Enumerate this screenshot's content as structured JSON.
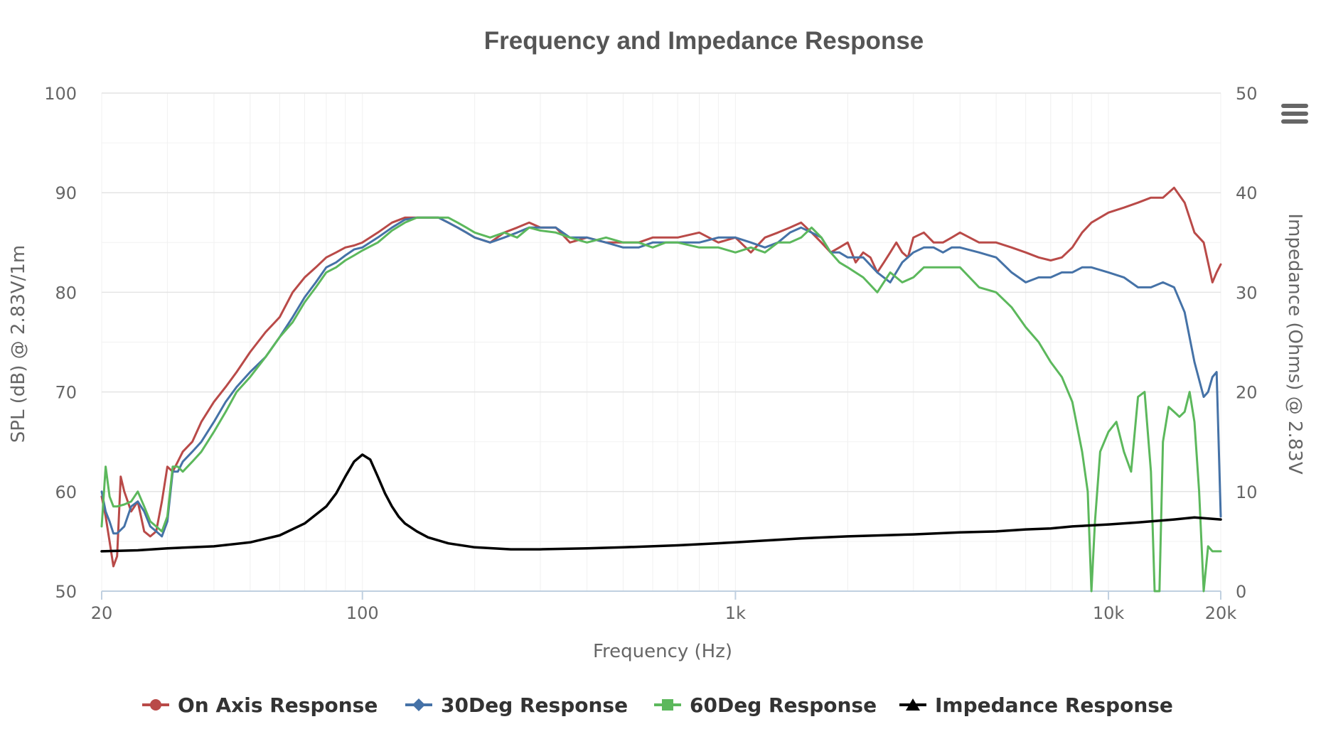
{
  "chart_data": {
    "type": "line",
    "title": "Frequency and Impedance Response",
    "xlabel": "Frequency (Hz)",
    "ylabel": "SPL (dB) @ 2.83V/1m",
    "y2label": "Impedance (Ohms) @ 2.83V",
    "xscale": "log",
    "xlim": [
      20,
      20000
    ],
    "ylim": [
      50,
      100
    ],
    "y2lim": [
      0,
      50
    ],
    "x_ticks": [
      {
        "value": 20,
        "label": "20"
      },
      {
        "value": 100,
        "label": "100"
      },
      {
        "value": 1000,
        "label": "1k"
      },
      {
        "value": 10000,
        "label": "10k"
      },
      {
        "value": 20000,
        "label": "20k"
      }
    ],
    "y_ticks": [
      {
        "value": 50,
        "label": "50"
      },
      {
        "value": 60,
        "label": "60"
      },
      {
        "value": 70,
        "label": "70"
      },
      {
        "value": 80,
        "label": "80"
      },
      {
        "value": 90,
        "label": "90"
      },
      {
        "value": 100,
        "label": "100"
      }
    ],
    "y2_ticks": [
      {
        "value": 0,
        "label": "0"
      },
      {
        "value": 10,
        "label": "10"
      },
      {
        "value": 20,
        "label": "20"
      },
      {
        "value": 30,
        "label": "30"
      },
      {
        "value": 40,
        "label": "40"
      },
      {
        "value": 50,
        "label": "50"
      }
    ],
    "grid": true,
    "legend_position": "bottom-center",
    "series": [
      {
        "name": "On Axis Response",
        "color": "#b94a48",
        "axis": "left",
        "marker": "circle",
        "x": [
          20,
          20.5,
          21,
          21.5,
          22,
          22.5,
          23,
          24,
          25,
          26,
          27,
          28,
          29,
          30,
          31,
          32,
          33,
          35,
          37,
          40,
          43,
          46,
          50,
          55,
          60,
          65,
          70,
          75,
          80,
          85,
          90,
          95,
          100,
          110,
          120,
          130,
          140,
          150,
          160,
          170,
          180,
          190,
          200,
          220,
          240,
          260,
          280,
          300,
          330,
          360,
          400,
          450,
          500,
          550,
          600,
          650,
          700,
          800,
          900,
          1000,
          1100,
          1200,
          1300,
          1400,
          1500,
          1600,
          1700,
          1800,
          1900,
          2000,
          2100,
          2200,
          2300,
          2400,
          2500,
          2600,
          2700,
          2800,
          2900,
          3000,
          3200,
          3400,
          3600,
          3800,
          4000,
          4500,
          5000,
          5500,
          6000,
          6500,
          7000,
          7500,
          8000,
          8500,
          9000,
          10000,
          11000,
          12000,
          13000,
          14000,
          15000,
          16000,
          17000,
          18000,
          19000,
          19500,
          20000
        ],
        "values": [
          59.5,
          57.5,
          55.0,
          52.5,
          53.5,
          61.5,
          60.0,
          58.0,
          59.0,
          56.0,
          55.5,
          56.0,
          59.0,
          62.5,
          62.0,
          63.0,
          64.0,
          65.0,
          67.0,
          69.0,
          70.5,
          72.0,
          74.0,
          76.0,
          77.5,
          80.0,
          81.5,
          82.5,
          83.5,
          84.0,
          84.5,
          84.7,
          85.0,
          86.0,
          87.0,
          87.5,
          87.5,
          87.5,
          87.5,
          87.0,
          86.5,
          86.0,
          85.5,
          85.0,
          86.0,
          86.5,
          87.0,
          86.5,
          86.5,
          85.0,
          85.5,
          85.0,
          85.0,
          85.0,
          85.5,
          85.5,
          85.5,
          86.0,
          85.0,
          85.5,
          84.0,
          85.5,
          86.0,
          86.5,
          87.0,
          86.0,
          85.0,
          84.0,
          84.5,
          85.0,
          83.0,
          84.0,
          83.5,
          82.0,
          83.0,
          84.0,
          85.0,
          84.0,
          83.5,
          85.5,
          86.0,
          85.0,
          85.0,
          85.5,
          86.0,
          85.0,
          85.0,
          84.5,
          84.0,
          83.5,
          83.2,
          83.5,
          84.5,
          86.0,
          87.0,
          88.0,
          88.5,
          89.0,
          89.5,
          89.5,
          90.5,
          89.0,
          86.0,
          85.0,
          81.0,
          82.0,
          82.8
        ]
      },
      {
        "name": "30Deg Response",
        "color": "#4572a7",
        "axis": "left",
        "marker": "diamond",
        "x": [
          20,
          20.5,
          21,
          21.5,
          22,
          23,
          24,
          25,
          26,
          27,
          28,
          29,
          30,
          31,
          32,
          33,
          35,
          37,
          40,
          43,
          46,
          50,
          55,
          60,
          65,
          70,
          75,
          80,
          85,
          90,
          95,
          100,
          110,
          120,
          130,
          140,
          150,
          160,
          170,
          180,
          190,
          200,
          220,
          240,
          260,
          280,
          300,
          330,
          360,
          400,
          450,
          500,
          550,
          600,
          650,
          700,
          800,
          900,
          1000,
          1100,
          1200,
          1300,
          1400,
          1500,
          1600,
          1700,
          1800,
          1900,
          2000,
          2200,
          2400,
          2600,
          2800,
          3000,
          3200,
          3400,
          3600,
          3800,
          4000,
          4500,
          5000,
          5500,
          6000,
          6500,
          7000,
          7500,
          8000,
          8500,
          9000,
          10000,
          11000,
          12000,
          13000,
          14000,
          15000,
          16000,
          17000,
          18000,
          18500,
          19000,
          19500,
          20000
        ],
        "values": [
          60.0,
          58.0,
          57.0,
          55.8,
          55.8,
          56.5,
          58.5,
          59.0,
          58.0,
          56.5,
          56.0,
          55.5,
          57.0,
          62.0,
          62.0,
          63.0,
          64.0,
          65.0,
          67.0,
          69.0,
          70.5,
          72.0,
          73.5,
          75.5,
          77.5,
          79.5,
          81.0,
          82.5,
          83.0,
          83.7,
          84.3,
          84.5,
          85.5,
          86.5,
          87.3,
          87.5,
          87.5,
          87.5,
          87.0,
          86.5,
          86.0,
          85.5,
          85.0,
          85.5,
          86.0,
          86.5,
          86.5,
          86.5,
          85.5,
          85.5,
          85.0,
          84.5,
          84.5,
          85.0,
          85.0,
          85.0,
          85.0,
          85.5,
          85.5,
          85.0,
          84.5,
          85.0,
          86.0,
          86.5,
          86.0,
          85.5,
          84.0,
          84.0,
          83.5,
          83.5,
          82.0,
          81.0,
          83.0,
          84.0,
          84.5,
          84.5,
          84.0,
          84.5,
          84.5,
          84.0,
          83.5,
          82.0,
          81.0,
          81.5,
          81.5,
          82.0,
          82.0,
          82.5,
          82.5,
          82.0,
          81.5,
          80.5,
          80.5,
          81.0,
          80.5,
          78.0,
          73.0,
          69.5,
          70.0,
          71.5,
          72.0,
          57.5
        ]
      },
      {
        "name": "60Deg Response",
        "color": "#5cb85c",
        "axis": "left",
        "marker": "square",
        "x": [
          20,
          20.5,
          21,
          21.5,
          22,
          23,
          24,
          25,
          26,
          27,
          28,
          29,
          30,
          31,
          32,
          33,
          35,
          37,
          40,
          43,
          46,
          50,
          55,
          60,
          65,
          70,
          75,
          80,
          85,
          90,
          95,
          100,
          110,
          120,
          130,
          140,
          150,
          160,
          170,
          180,
          190,
          200,
          220,
          240,
          260,
          280,
          300,
          330,
          360,
          400,
          450,
          500,
          550,
          600,
          650,
          700,
          800,
          900,
          1000,
          1100,
          1200,
          1300,
          1400,
          1500,
          1600,
          1700,
          1800,
          1900,
          2000,
          2200,
          2400,
          2600,
          2800,
          3000,
          3200,
          3400,
          3600,
          3800,
          4000,
          4500,
          5000,
          5500,
          6000,
          6500,
          7000,
          7500,
          8000,
          8500,
          8800,
          9000,
          9200,
          9500,
          10000,
          10500,
          11000,
          11500,
          12000,
          12500,
          13000,
          13300,
          13700,
          14000,
          14500,
          15000,
          15500,
          16000,
          16500,
          17000,
          17500,
          18000,
          18500,
          19000,
          19300,
          19600,
          20000
        ],
        "values": [
          56.5,
          62.5,
          59.5,
          58.5,
          58.5,
          58.7,
          59.0,
          60.0,
          58.5,
          57.0,
          56.5,
          56.0,
          57.5,
          62.5,
          62.5,
          62.0,
          63.0,
          64.0,
          66.0,
          68.0,
          70.0,
          71.5,
          73.5,
          75.5,
          77.0,
          79.0,
          80.5,
          82.0,
          82.5,
          83.2,
          83.7,
          84.2,
          85.0,
          86.2,
          87.0,
          87.5,
          87.5,
          87.5,
          87.5,
          87.0,
          86.5,
          86.0,
          85.5,
          86.0,
          85.5,
          86.5,
          86.2,
          86.0,
          85.5,
          85.0,
          85.5,
          85.0,
          85.0,
          84.5,
          85.0,
          85.0,
          84.5,
          84.5,
          84.0,
          84.5,
          84.0,
          85.0,
          85.0,
          85.5,
          86.5,
          85.5,
          84.0,
          83.0,
          82.5,
          81.5,
          80.0,
          82.0,
          81.0,
          81.5,
          82.5,
          82.5,
          82.5,
          82.5,
          82.5,
          80.5,
          80.0,
          78.5,
          76.5,
          75.0,
          73.0,
          71.5,
          69.0,
          64.0,
          60.0,
          50.0,
          57.0,
          64.0,
          66.0,
          67.0,
          64.0,
          62.0,
          69.5,
          70.0,
          62.0,
          50.0,
          50.0,
          65.0,
          68.5,
          68.0,
          67.5,
          68.0,
          70.0,
          67.0,
          60.0,
          50.0,
          54.5,
          54.0,
          54.0,
          54.0,
          54.0
        ]
      },
      {
        "name": "Impedance Response",
        "color": "#000000",
        "axis": "right",
        "marker": "triangle",
        "x": [
          20,
          25,
          30,
          40,
          50,
          60,
          70,
          80,
          85,
          90,
          95,
          100,
          105,
          110,
          115,
          120,
          125,
          130,
          140,
          150,
          170,
          200,
          250,
          300,
          400,
          500,
          700,
          1000,
          1500,
          2000,
          3000,
          4000,
          5000,
          6000,
          7000,
          8000,
          10000,
          12000,
          15000,
          17000,
          20000
        ],
        "values": [
          4.0,
          4.1,
          4.3,
          4.5,
          4.9,
          5.6,
          6.8,
          8.5,
          9.8,
          11.5,
          13.0,
          13.7,
          13.2,
          11.5,
          9.8,
          8.5,
          7.5,
          6.8,
          6.0,
          5.4,
          4.8,
          4.4,
          4.2,
          4.2,
          4.3,
          4.4,
          4.6,
          4.9,
          5.3,
          5.5,
          5.7,
          5.9,
          6.0,
          6.2,
          6.3,
          6.5,
          6.7,
          6.9,
          7.2,
          7.4,
          7.2
        ]
      }
    ]
  },
  "menu": {
    "icon": "hamburger-menu-icon"
  }
}
